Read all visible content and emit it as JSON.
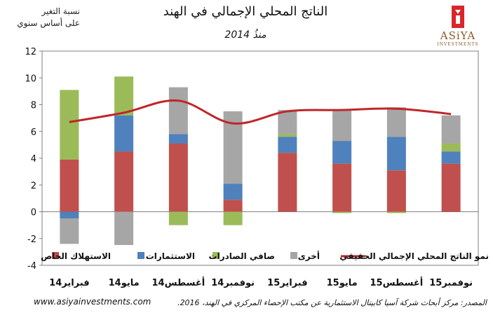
{
  "header": {
    "title": "الناتج المحلي الإجمالي في الهند",
    "subtitle": "منذُ 2014",
    "ylabel_line1": "نسبة التغير",
    "ylabel_line2": "على أساس سنوي",
    "logo_text": "ASiYA",
    "logo_sub": "INVESTMENTS"
  },
  "footer": {
    "website": "www.asiyainvestments.com",
    "source": "المصدر: مركز أبحاث شركة آسيا كابيتال الاستثمارية عن مكتب الإحصاء المركزي في الهند، 2016."
  },
  "colors": {
    "private_consumption": "#c0504d",
    "investments": "#4f81bd",
    "net_exports": "#9bbb59",
    "other": "#a6a6a6",
    "gdp_line": "#c0262a"
  },
  "chart_data": {
    "type": "bar",
    "stacked": true,
    "categories": [
      "فبراير14",
      "مايو14",
      "أغسطس14",
      "نوفمبر14",
      "فبراير15",
      "مايو15",
      "أغسطس15",
      "نوفمبر15"
    ],
    "ylim": [
      -4,
      12
    ],
    "yticks": [
      -4,
      -2,
      0,
      2,
      4,
      6,
      8,
      10,
      12
    ],
    "series": [
      {
        "name": "الاستهلاك الخاص",
        "key": "private_consumption",
        "values": [
          3.9,
          4.5,
          5.1,
          0.9,
          4.4,
          3.6,
          3.1,
          3.6
        ]
      },
      {
        "name": "الاستثمارات",
        "key": "investments",
        "values": [
          -0.5,
          2.7,
          0.7,
          1.2,
          1.2,
          1.7,
          2.5,
          0.9
        ]
      },
      {
        "name": "صافي الصادرات",
        "key": "net_exports",
        "values": [
          5.2,
          2.9,
          -1.0,
          -1.0,
          0.2,
          -0.1,
          -0.1,
          0.6
        ]
      },
      {
        "name": "أخرى",
        "key": "other",
        "values": [
          -1.9,
          -2.7,
          3.5,
          5.4,
          1.8,
          2.3,
          2.2,
          2.1
        ]
      }
    ],
    "line": {
      "name": "نمو الناتج المحلي الإجمالي الحقيقي",
      "key": "gdp_line",
      "values": [
        6.7,
        7.4,
        8.3,
        6.6,
        7.5,
        7.6,
        7.7,
        7.3
      ]
    },
    "legend_placement": "bottom"
  }
}
